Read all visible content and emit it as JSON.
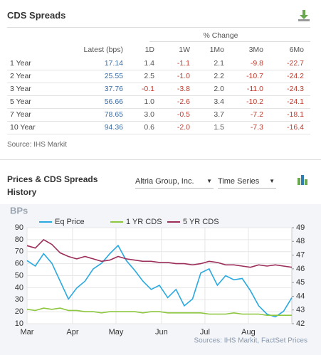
{
  "header": {
    "title": "CDS Spreads"
  },
  "table": {
    "group_header": "% Change",
    "columns": [
      "Latest (bps)",
      "1D",
      "1W",
      "1Mo",
      "3Mo",
      "6Mo"
    ],
    "rows": [
      [
        "1 Year",
        "17.14",
        "1.4",
        "-1.1",
        "2.1",
        "-9.8",
        "-22.7"
      ],
      [
        "2 Year",
        "25.55",
        "2.5",
        "-1.0",
        "2.2",
        "-10.7",
        "-24.2"
      ],
      [
        "3 Year",
        "37.76",
        "-0.1",
        "-3.8",
        "2.0",
        "-11.0",
        "-24.3"
      ],
      [
        "5 Year",
        "56.66",
        "1.0",
        "-2.6",
        "3.4",
        "-10.2",
        "-24.1"
      ],
      [
        "7 Year",
        "78.65",
        "3.0",
        "-0.5",
        "3.7",
        "-7.2",
        "-18.1"
      ],
      [
        "10 Year",
        "94.36",
        "0.6",
        "-2.0",
        "1.5",
        "-7.3",
        "-16.4"
      ]
    ]
  },
  "source": "Source: IHS Markit",
  "section": {
    "title": "Prices & CDS Spreads History",
    "company": "Altria Group, Inc.",
    "view": "Time Series"
  },
  "chart_data": {
    "type": "line",
    "y_label": "BPs",
    "source": "Sources: IHS Markit, FactSet Prices",
    "x": [
      0,
      4,
      8,
      12,
      16,
      20,
      24,
      28,
      32,
      36,
      40,
      44,
      48,
      52,
      56,
      60,
      64,
      68,
      72,
      76,
      80,
      84,
      88,
      92,
      96,
      100,
      104,
      108,
      112,
      116,
      120,
      124,
      128
    ],
    "xlim": [
      0,
      128
    ],
    "xticks": [
      {
        "value": 0,
        "label": "Mar"
      },
      {
        "value": 22,
        "label": "Apr"
      },
      {
        "value": 43,
        "label": "May"
      },
      {
        "value": 65,
        "label": "Jun"
      },
      {
        "value": 86,
        "label": "Jul"
      },
      {
        "value": 107,
        "label": "Aug"
      }
    ],
    "ylim": [
      10,
      90
    ],
    "yticks": [
      10,
      20,
      30,
      40,
      50,
      60,
      70,
      80,
      90
    ],
    "y2lim": [
      42,
      49
    ],
    "y2ticks": [
      42,
      43,
      44,
      45,
      46,
      47,
      48,
      49
    ],
    "grid": true,
    "series": [
      {
        "name": "Eq Price",
        "color": "#29a9e0",
        "axis": "y2",
        "values": [
          46.6,
          46.2,
          47.1,
          46.4,
          45.1,
          43.8,
          44.6,
          45.1,
          46.0,
          46.4,
          47.1,
          47.7,
          46.6,
          45.9,
          45.1,
          44.5,
          44.8,
          43.9,
          44.5,
          43.3,
          43.8,
          45.7,
          46.0,
          44.8,
          45.5,
          45.2,
          45.3,
          44.4,
          43.3,
          42.7,
          42.5,
          42.9,
          43.9
        ]
      },
      {
        "name": "1 YR CDS",
        "color": "#8dc63f",
        "values": [
          22,
          21,
          23,
          22,
          23,
          21,
          21,
          20,
          20,
          19,
          20,
          20,
          20,
          20,
          19,
          20,
          20,
          19,
          19,
          19,
          19,
          19,
          18,
          18,
          18,
          19,
          18,
          18,
          18,
          17,
          17,
          17,
          17
        ]
      },
      {
        "name": "5 YR CDS",
        "color": "#9c2e5a",
        "values": [
          75,
          73,
          80,
          76,
          69,
          66,
          64,
          66,
          64,
          62,
          63,
          66,
          64,
          63,
          62,
          62,
          61,
          61,
          60,
          60,
          59,
          60,
          62,
          61,
          59,
          59,
          58,
          57,
          59,
          58,
          59,
          58,
          57
        ]
      }
    ]
  }
}
